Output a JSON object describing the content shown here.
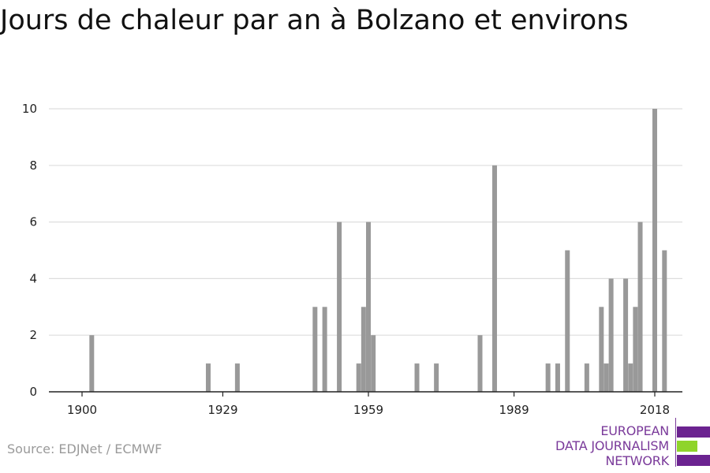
{
  "title": "Jours de chaleur par an à Bolzano et environs",
  "source": "Source: EDJNet / ECMWF",
  "logo": {
    "lines": [
      "EUROPEAN",
      "DATA JOURNALISM",
      "NETWORK"
    ],
    "colors": {
      "purple": "#6b2390",
      "green": "#8fd42b"
    }
  },
  "chart_data": {
    "type": "bar",
    "title": "Jours de chaleur par an à Bolzano et environs",
    "xlabel": "",
    "ylabel": "",
    "xlim": [
      1900,
      2018
    ],
    "ylim": [
      0,
      10
    ],
    "x_ticks": [
      1900,
      1929,
      1959,
      1989,
      2018
    ],
    "y_ticks": [
      0,
      2,
      4,
      6,
      8,
      10
    ],
    "grid": true,
    "bar_color": "#999999",
    "x": [
      1902,
      1926,
      1932,
      1948,
      1950,
      1953,
      1957,
      1958,
      1959,
      1960,
      1969,
      1973,
      1982,
      1985,
      1996,
      1998,
      2000,
      2004,
      2007,
      2008,
      2009,
      2012,
      2013,
      2014,
      2015,
      2018,
      2020
    ],
    "values": [
      2,
      1,
      1,
      3,
      3,
      6,
      1,
      3,
      6,
      2,
      1,
      1,
      2,
      8,
      1,
      1,
      5,
      1,
      3,
      1,
      4,
      4,
      1,
      3,
      6,
      10,
      5
    ]
  }
}
